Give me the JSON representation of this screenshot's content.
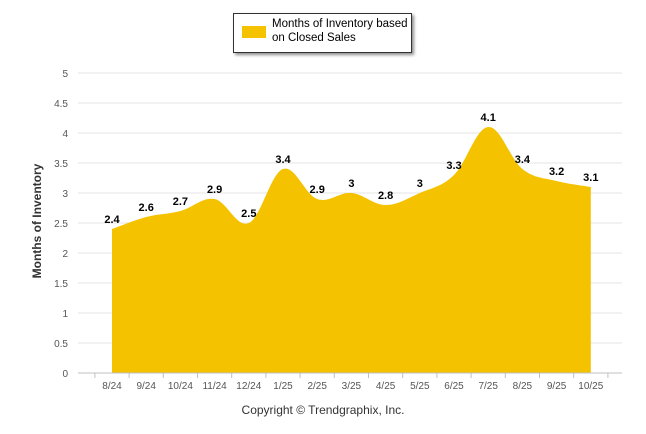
{
  "chart_data": {
    "type": "area",
    "categories": [
      "8/24",
      "9/24",
      "10/24",
      "11/24",
      "12/24",
      "1/25",
      "2/25",
      "3/25",
      "4/25",
      "5/25",
      "6/25",
      "7/25",
      "8/25",
      "9/25",
      "10/25"
    ],
    "series": [
      {
        "name": "Months of Inventory based on Closed Sales",
        "values": [
          2.4,
          2.6,
          2.7,
          2.9,
          2.5,
          3.4,
          2.9,
          3,
          2.8,
          3,
          3.3,
          4.1,
          3.4,
          3.2,
          3.1
        ],
        "color": "#f5c200"
      }
    ],
    "data_labels": [
      "2.4",
      "2.6",
      "2.7",
      "2.9",
      "2.5",
      "3.4",
      "2.9",
      "3",
      "2.8",
      "3",
      "3.3",
      "4.1",
      "3.4",
      "3.2",
      "3.1"
    ],
    "ylabel": "Months of Inventory",
    "yticks": [
      "0",
      "0.5",
      "1",
      "1.5",
      "2",
      "2.5",
      "3",
      "3.5",
      "4",
      "4.5",
      "5"
    ],
    "ylim": [
      0,
      5
    ],
    "grid": true,
    "legend_position": "top-center"
  },
  "legend": {
    "label": "Months of Inventory based on Closed Sales"
  },
  "footer": {
    "copyright": "Copyright © Trendgraphix, Inc."
  },
  "colors": {
    "area": "#f5c200",
    "grid": "#e6e6e6",
    "axis": "#c0c0c0"
  }
}
